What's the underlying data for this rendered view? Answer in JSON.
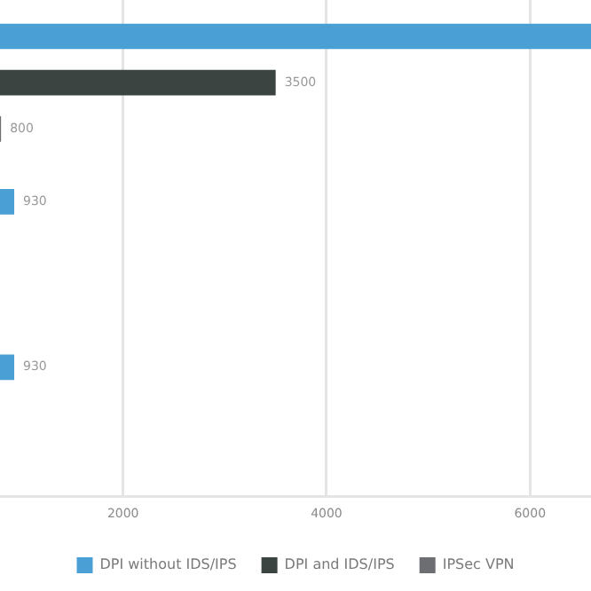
{
  "chart_data": {
    "type": "bar",
    "orientation": "horizontal",
    "categories": [
      null,
      null,
      null
    ],
    "series": [
      {
        "name": "DPI without IDS/IPS",
        "color": "#4a9fd4",
        "values": [
          6600,
          930,
          930
        ],
        "value_labels": [
          null,
          "930",
          "930"
        ]
      },
      {
        "name": "DPI and IDS/IPS",
        "color": "#3b4441",
        "values": [
          3500,
          null,
          null
        ],
        "value_labels": [
          "3500",
          null,
          null
        ]
      },
      {
        "name": "IPSec VPN",
        "color": "#6d6e71",
        "values": [
          800,
          null,
          null
        ],
        "value_labels": [
          "800",
          null,
          null
        ]
      }
    ],
    "xlim": [
      790,
      6600
    ],
    "xticks": [
      2000,
      4000,
      6000
    ],
    "grid": "x",
    "legend": "bottom"
  }
}
